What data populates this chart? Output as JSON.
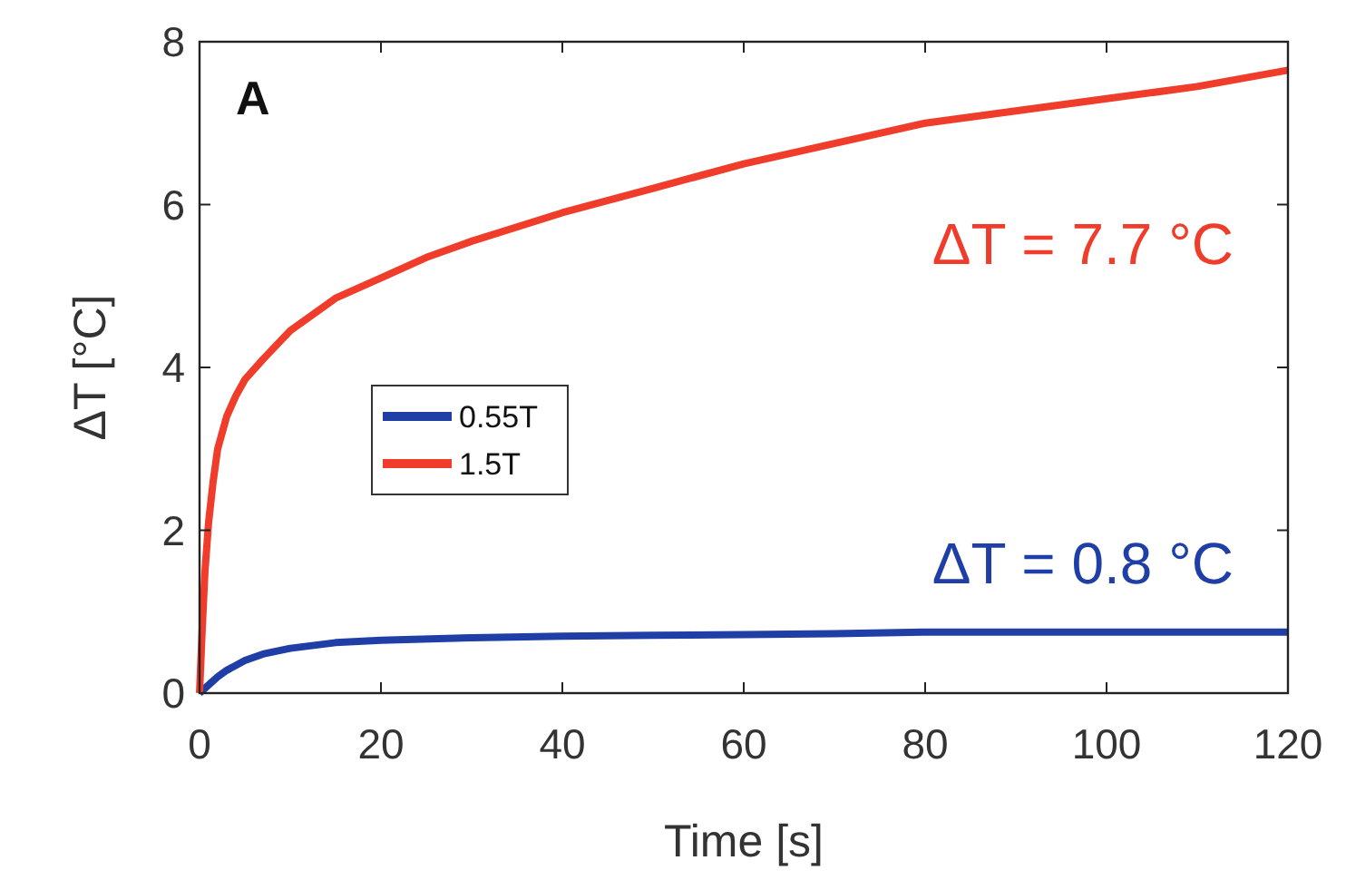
{
  "chart_data": {
    "type": "line",
    "xlabel": "Time [s]",
    "ylabel": "ΔT [°C]",
    "xlim": [
      0,
      120
    ],
    "ylim": [
      0,
      8
    ],
    "xticks": [
      0,
      20,
      40,
      60,
      80,
      100,
      120
    ],
    "yticks": [
      0,
      2,
      4,
      6,
      8
    ],
    "legend": "left",
    "grid": false,
    "line_style": "solid",
    "marker": "none",
    "annotations": [
      "A",
      "ΔT = 7.7 °C",
      "ΔT = 0.8 °C"
    ],
    "series": [
      {
        "name": "0.55T",
        "color": "#1f3fa6",
        "x": [
          0,
          0.5,
          1,
          2,
          3,
          5,
          7,
          10,
          15,
          20,
          30,
          40,
          50,
          60,
          70,
          80,
          90,
          100,
          110,
          120
        ],
        "values": [
          0,
          0.05,
          0.1,
          0.2,
          0.28,
          0.4,
          0.48,
          0.55,
          0.62,
          0.65,
          0.68,
          0.7,
          0.71,
          0.72,
          0.73,
          0.75,
          0.75,
          0.75,
          0.75,
          0.75
        ]
      },
      {
        "name": "1.5T",
        "color": "#f03c2a",
        "x": [
          0,
          0.3,
          0.6,
          1,
          1.5,
          2,
          3,
          4,
          5,
          7,
          10,
          15,
          20,
          25,
          30,
          40,
          50,
          60,
          70,
          80,
          90,
          100,
          110,
          120
        ],
        "values": [
          0,
          0.8,
          1.5,
          2.1,
          2.6,
          3.0,
          3.4,
          3.65,
          3.85,
          4.1,
          4.45,
          4.85,
          5.1,
          5.35,
          5.55,
          5.9,
          6.2,
          6.5,
          6.75,
          7.0,
          7.15,
          7.3,
          7.45,
          7.65
        ]
      }
    ]
  }
}
